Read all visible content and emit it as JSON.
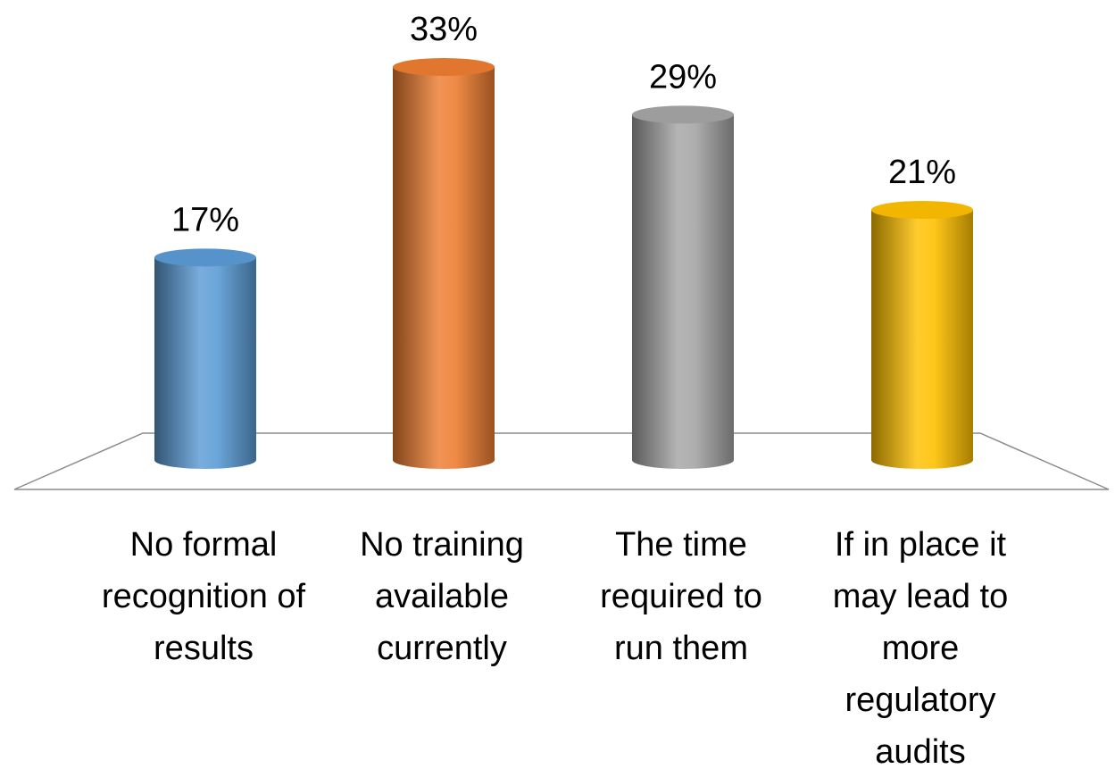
{
  "chart_data": {
    "type": "bar",
    "style": "3d-cylinder",
    "categories": [
      [
        "No formal",
        "recognition of",
        "results"
      ],
      [
        "No training",
        "available",
        "currently"
      ],
      [
        "The time",
        "required to",
        "run them"
      ],
      [
        "If in place it",
        "may lead to",
        "more",
        "regulatory",
        "audits"
      ]
    ],
    "values": [
      17,
      33,
      29,
      21
    ],
    "data_labels": [
      "17%",
      "33%",
      "29%",
      "21%"
    ],
    "unit": "%",
    "colors": [
      "#5b9bd5",
      "#ed7d31",
      "#a5a5a5",
      "#ffc000"
    ],
    "ylim": [
      0,
      33
    ],
    "grid": false,
    "legend": "none"
  }
}
